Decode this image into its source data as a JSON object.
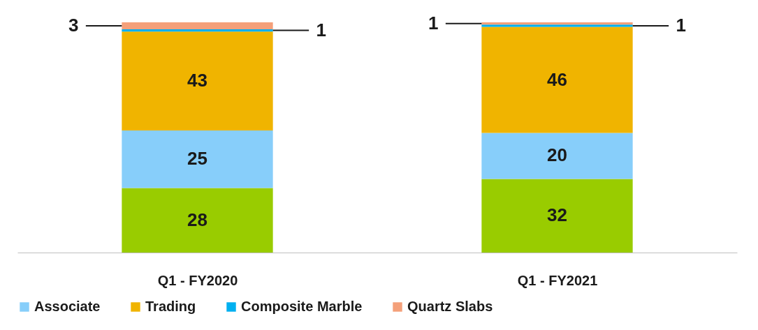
{
  "chart_data": {
    "type": "bar",
    "stacked": true,
    "data_labels": true,
    "legend": "bottom",
    "categories": [
      "Q1 - FY2020",
      "Q1 - FY2021"
    ],
    "series": [
      {
        "color": "#99cc00",
        "values": [
          28,
          32
        ]
      },
      {
        "name": "Associate",
        "color": "#87cefa",
        "values": [
          25,
          20
        ]
      },
      {
        "name": "Trading",
        "color": "#f0b400",
        "values": [
          43,
          46
        ]
      },
      {
        "name": "Composite Marble",
        "color": "#00b0f0",
        "values": [
          1,
          1
        ]
      },
      {
        "name": "Quartz Slabs",
        "color": "#f4a07a",
        "values": [
          3,
          1
        ]
      }
    ]
  }
}
